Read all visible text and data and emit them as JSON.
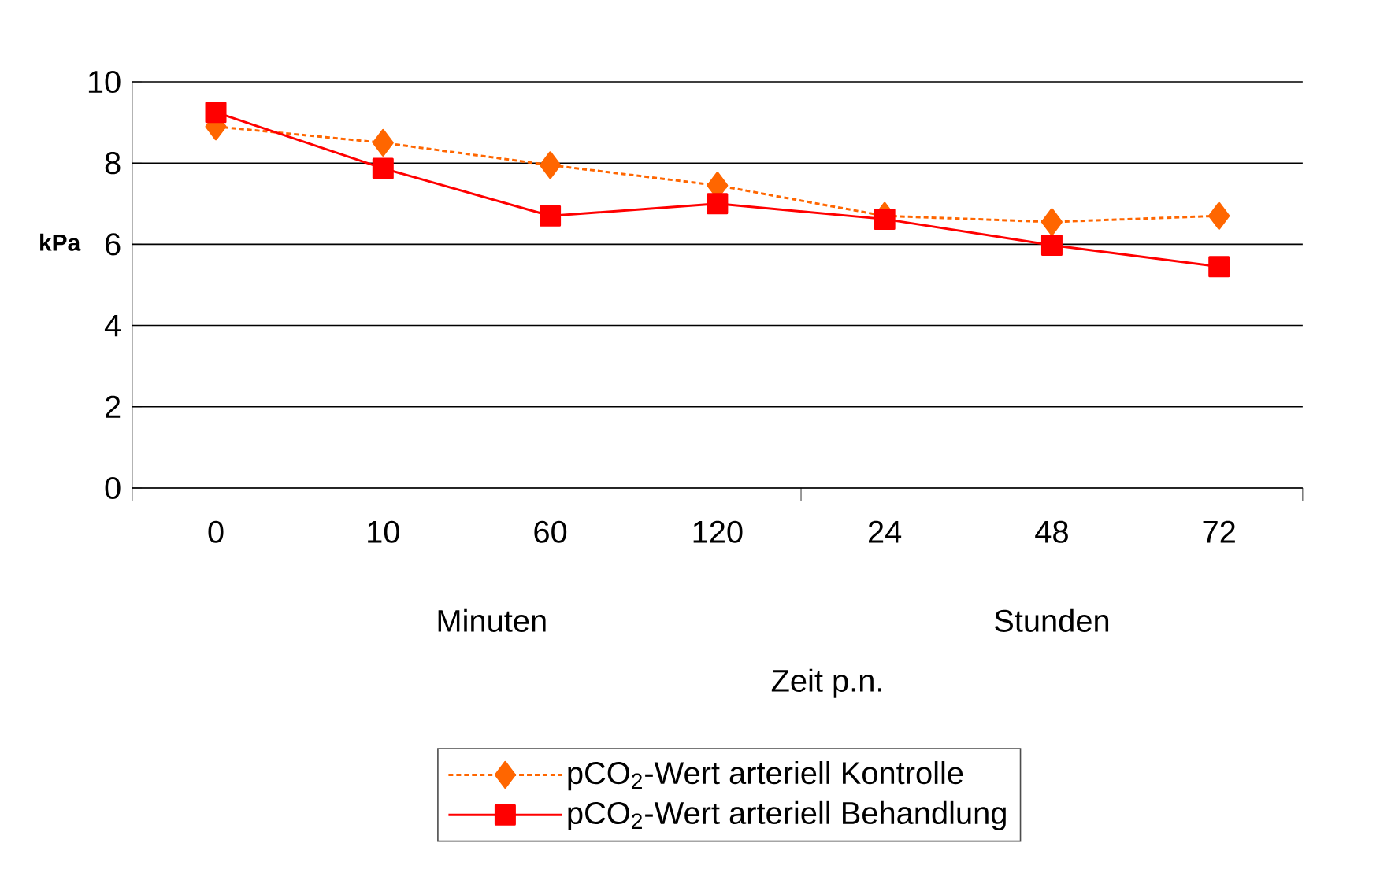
{
  "chart_data": {
    "type": "line",
    "xlabel": "Zeit p.n.",
    "ylabel": "kPa",
    "categories": [
      "0",
      "10",
      "60",
      "120",
      "24",
      "48",
      "72"
    ],
    "series": [
      {
        "name": "pCO$_{2}$-Wert arteriell Kontrolle",
        "color": "#ff6600",
        "marker": "diamond",
        "line_style": "dashed",
        "values": [
          8.9,
          8.5,
          7.95,
          7.45,
          6.7,
          6.55,
          6.7
        ]
      },
      {
        "name": "pCO$_{2}$-Wert arteriell Behandlung",
        "color": "#ff0000",
        "marker": "square",
        "line_style": "solid",
        "values": [
          9.25,
          7.87,
          6.7,
          7.0,
          6.62,
          5.98,
          5.45
        ]
      }
    ],
    "annotations": [
      "Minuten",
      "Stunden"
    ],
    "ylim": [
      0,
      10
    ],
    "yticks": [
      0,
      2,
      4,
      6,
      8,
      10
    ],
    "grid": "y",
    "legend": "bottom"
  }
}
